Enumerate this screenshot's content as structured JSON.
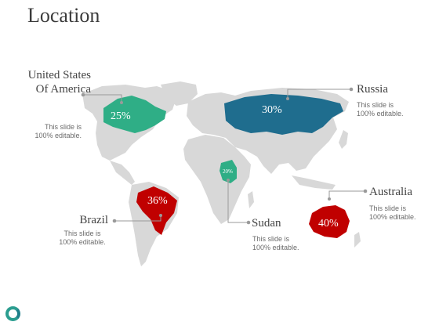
{
  "title": "Location",
  "colors": {
    "land": "#d8d8d8",
    "teal": "#2fae86",
    "blue": "#1f6d8e",
    "red": "#c00000",
    "line": "#9a9a9a"
  },
  "markers": {
    "usa": {
      "name": "United States Of America",
      "name_line1": "United States",
      "name_line2": "Of America",
      "percent": "25%",
      "desc_line1": "This slide is",
      "desc_line2": "100% editable."
    },
    "russia": {
      "name": "Russia",
      "percent": "30%",
      "desc_line1": "This slide is",
      "desc_line2": "100% editable."
    },
    "brazil": {
      "name": "Brazil",
      "percent": "36%",
      "desc_line1": "This slide is",
      "desc_line2": "100% editable."
    },
    "sudan": {
      "name": "Sudan",
      "percent": "20%",
      "desc_line1": "This slide is",
      "desc_line2": "100% editable."
    },
    "australia": {
      "name": "Australia",
      "percent": "40%",
      "desc_line1": "This slide is",
      "desc_line2": "100% editable."
    }
  },
  "logo_icon": "ring-logo-icon"
}
